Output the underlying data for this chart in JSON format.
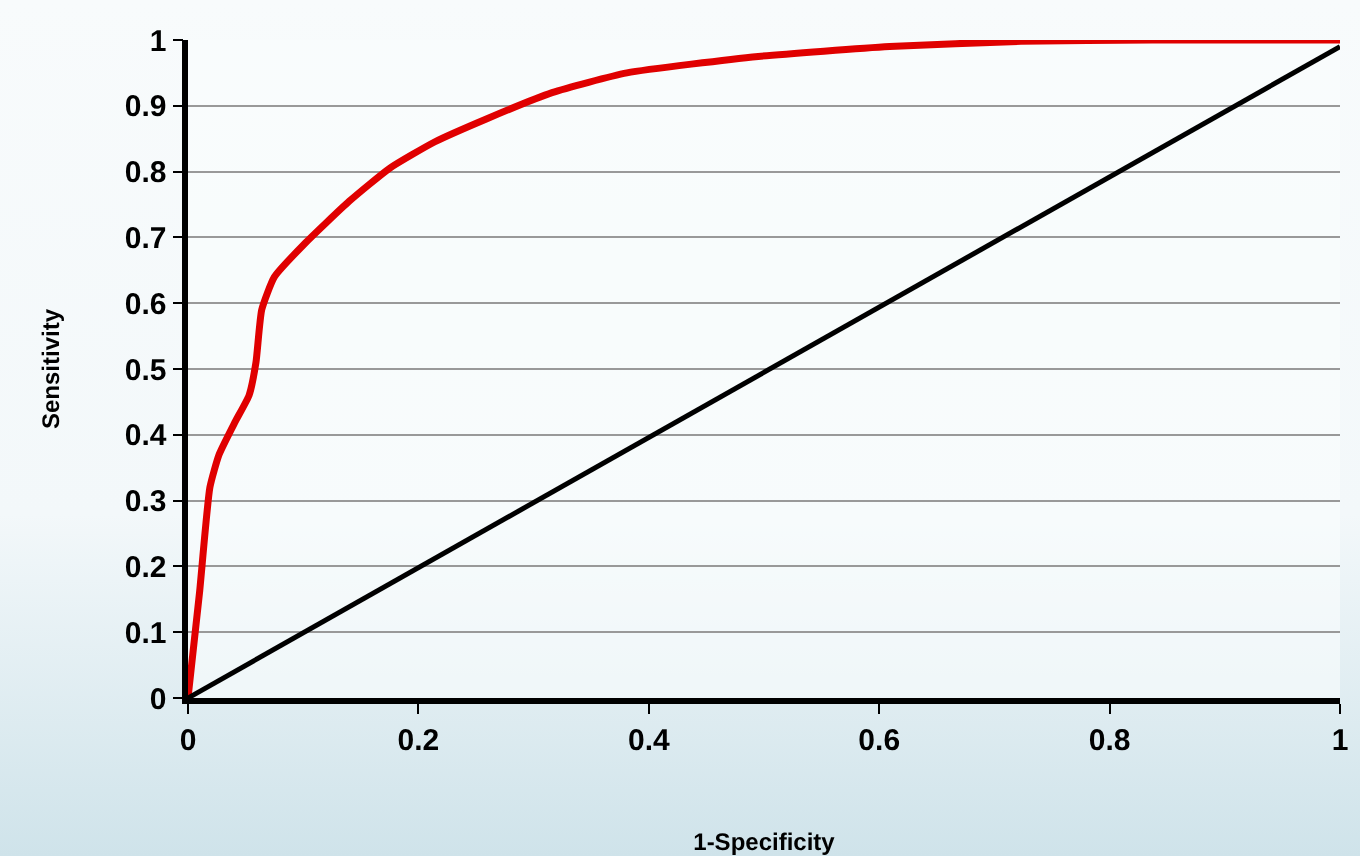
{
  "chart_data": {
    "type": "line",
    "xlabel": "1-Specificity",
    "ylabel": "Sensitivity",
    "xlim": [
      0,
      1
    ],
    "xticks": [
      0,
      0.2,
      0.4,
      0.6,
      0.8,
      1
    ],
    "ylim": [
      0,
      1
    ],
    "yticks": [
      0,
      0.1,
      0.2,
      0.3,
      0.4,
      0.5,
      0.6,
      0.7,
      0.8,
      0.9,
      1
    ],
    "grid": "y",
    "series": [
      {
        "color": "#e00000",
        "x": [
          0,
          0.01,
          0.019,
          0.027,
          0.041,
          0.053,
          0.059,
          0.064,
          0.075,
          0.101,
          0.14,
          0.175,
          0.214,
          0.259,
          0.316,
          0.381,
          0.495,
          0.609,
          0.723,
          0.837,
          1
        ],
        "values": [
          0,
          0.16,
          0.32,
          0.37,
          0.42,
          0.46,
          0.51,
          0.59,
          0.64,
          0.69,
          0.755,
          0.805,
          0.845,
          0.88,
          0.92,
          0.95,
          0.975,
          0.99,
          0.998,
          1,
          1
        ]
      },
      {
        "color": "#000000",
        "x": [
          0,
          1
        ],
        "values": [
          0,
          0.99
        ]
      }
    ]
  }
}
